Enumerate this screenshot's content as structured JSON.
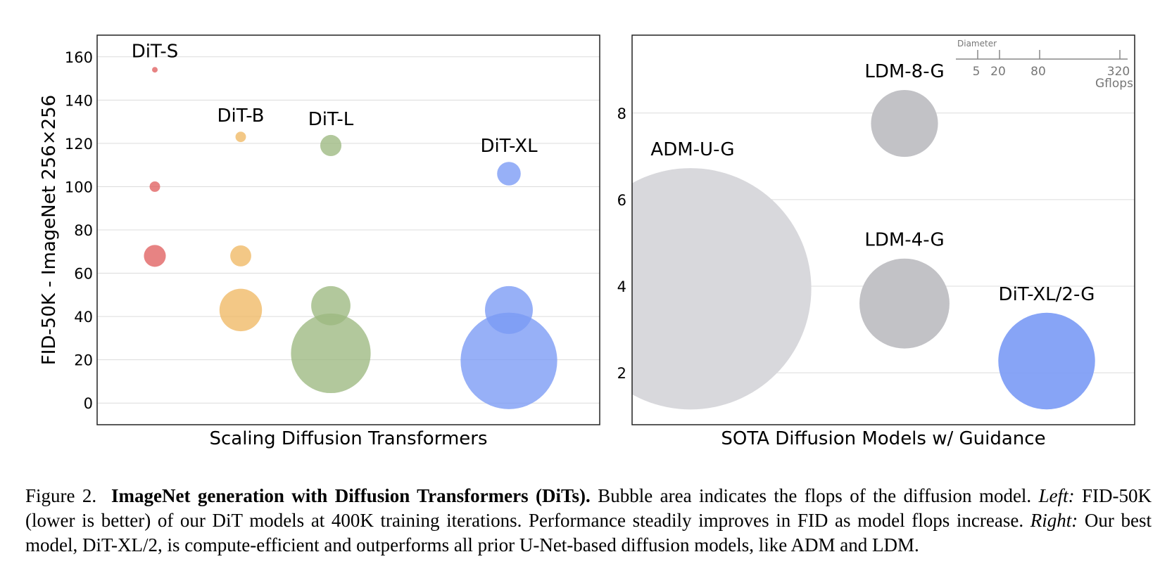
{
  "chart_data": [
    {
      "type": "scatter",
      "subtype": "bubble",
      "xlabel": "Scaling Diffusion Transformers",
      "ylabel": "FID-50K - ImageNet 256×256",
      "ylim": [
        -10,
        170
      ],
      "yticks": [
        0,
        20,
        40,
        60,
        80,
        100,
        120,
        140,
        160
      ],
      "grid": true,
      "groups": [
        {
          "name": "DiT-S",
          "color": "#e06060",
          "points": [
            {
              "fid": 154,
              "gflops": 0.4
            },
            {
              "fid": 100,
              "gflops": 1.4
            },
            {
              "fid": 68,
              "gflops": 6.1
            }
          ]
        },
        {
          "name": "DiT-B",
          "color": "#f0b864",
          "points": [
            {
              "fid": 123,
              "gflops": 1.4
            },
            {
              "fid": 68,
              "gflops": 5.6
            },
            {
              "fid": 43,
              "gflops": 23
            }
          ]
        },
        {
          "name": "DiT-L",
          "color": "#9cb880",
          "points": [
            {
              "fid": 119,
              "gflops": 5.7
            },
            {
              "fid": 45,
              "gflops": 19.6
            },
            {
              "fid": 23,
              "gflops": 80.7
            }
          ]
        },
        {
          "name": "DiT-XL",
          "color": "#7a9af5",
          "points": [
            {
              "fid": 106,
              "gflops": 7.1
            },
            {
              "fid": 43,
              "gflops": 29.1
            },
            {
              "fid": 19.5,
              "gflops": 118.6
            }
          ]
        }
      ]
    },
    {
      "type": "scatter",
      "subtype": "bubble",
      "xlabel": "SOTA Diffusion Models w/ Guidance",
      "ylim": [
        0.8,
        9.8
      ],
      "yticks": [
        2,
        4,
        6,
        8
      ],
      "grid": true,
      "models": [
        {
          "name": "ADM-U-G",
          "fid": 3.94,
          "gflops": 742,
          "color": "#d8d8dc"
        },
        {
          "name": "LDM-8-G",
          "fid": 7.76,
          "gflops": 57,
          "color": "#c2c2c6"
        },
        {
          "name": "LDM-4-G",
          "fid": 3.6,
          "gflops": 103,
          "color": "#c2c2c6"
        },
        {
          "name": "DiT-XL/2-G",
          "fid": 2.27,
          "gflops": 119,
          "color": "#7a9af5"
        }
      ],
      "size_legend": {
        "title": "Diameter",
        "values": [
          5,
          20,
          80,
          320
        ],
        "labels": [
          "5",
          "20",
          "80",
          "320"
        ],
        "unit": "Gflops"
      }
    }
  ],
  "caption": {
    "label": "Figure 2.",
    "bold": "ImageNet generation with Diffusion Transformers (DiTs).",
    "text1": " Bubble area indicates the flops of the diffusion model. ",
    "left_label": "Left:",
    "text2": " FID-50K (lower is better) of our DiT models at 400K training iterations. Performance steadily improves in FID as model flops increase. ",
    "right_label": "Right:",
    "text3": " Our best model, DiT-XL/2, is compute-efficient and outperforms all prior U-Net-based diffusion models, like ADM and LDM."
  }
}
